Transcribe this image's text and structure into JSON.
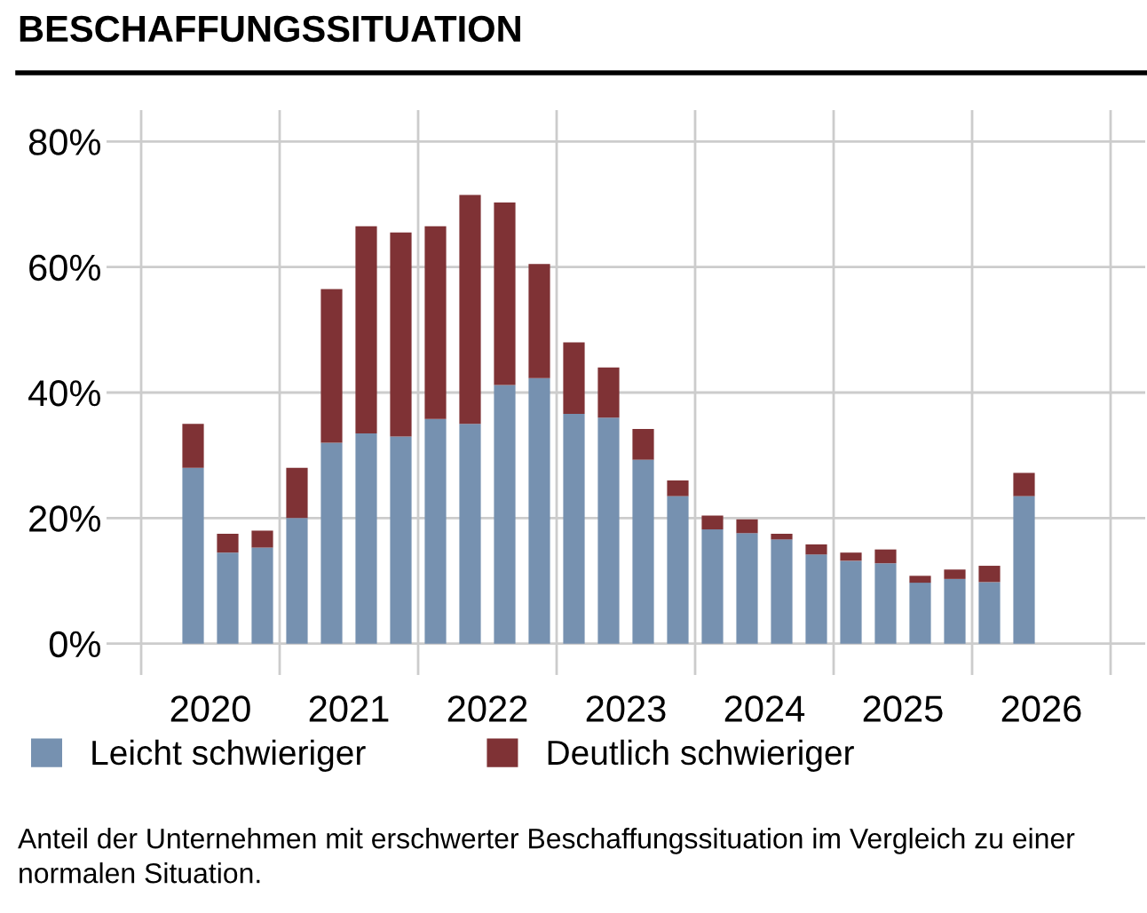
{
  "chart_data": {
    "type": "bar",
    "stacked": true,
    "title": "BESCHAFFUNGSSITUATION",
    "x": [
      2020.375,
      2020.625,
      2020.875,
      2021.125,
      2021.375,
      2021.625,
      2021.875,
      2022.125,
      2022.375,
      2022.625,
      2022.875,
      2023.125,
      2023.375,
      2023.625,
      2023.875,
      2024.125,
      2024.375,
      2024.625,
      2024.875,
      2025.125,
      2025.375,
      2025.625,
      2025.875,
      2026.125,
      2026.375
    ],
    "series": [
      {
        "name": "Leicht schwieriger",
        "color": "#7691b0",
        "values": [
          28,
          14.5,
          15.3,
          20,
          32,
          33.5,
          33,
          35.8,
          35,
          41.2,
          42.3,
          36.6,
          36,
          29.3,
          23.5,
          18.2,
          17.6,
          16.6,
          14.2,
          13.2,
          12.8,
          9.7,
          10.3,
          9.8,
          23.5
        ]
      },
      {
        "name": "Deutlich schwieriger",
        "color": "#7f3235",
        "values": [
          7,
          3,
          2.7,
          8,
          24.5,
          33,
          32.5,
          30.7,
          36.5,
          29.1,
          18.2,
          11.4,
          8,
          4.9,
          2.5,
          2.2,
          2.2,
          0.9,
          1.6,
          1.3,
          2.2,
          1.1,
          1.5,
          2.6,
          3.7
        ]
      }
    ],
    "xlim": [
      2019.75,
      2027.25
    ],
    "xticks": [
      {
        "value": 2020,
        "label": null
      },
      {
        "value": 2020.5,
        "label": "2020"
      },
      {
        "value": 2021,
        "label": null
      },
      {
        "value": 2021.5,
        "label": "2021"
      },
      {
        "value": 2022,
        "label": null
      },
      {
        "value": 2022.5,
        "label": "2022"
      },
      {
        "value": 2023,
        "label": null
      },
      {
        "value": 2023.5,
        "label": "2023"
      },
      {
        "value": 2024,
        "label": null
      },
      {
        "value": 2024.5,
        "label": "2024"
      },
      {
        "value": 2025,
        "label": null
      },
      {
        "value": 2025.5,
        "label": "2025"
      },
      {
        "value": 2026,
        "label": null
      },
      {
        "value": 2026.5,
        "label": "2026"
      },
      {
        "value": 2027,
        "label": null
      }
    ],
    "ylim": [
      -5,
      85
    ],
    "yticks": [
      {
        "value": 0,
        "label": "0%"
      },
      {
        "value": 20,
        "label": "20%"
      },
      {
        "value": 40,
        "label": "40%"
      },
      {
        "value": 60,
        "label": "60%"
      },
      {
        "value": 80,
        "label": "80%"
      }
    ],
    "grid": true,
    "legend": "bottom",
    "annotations": [
      "Anteil der Unternehmen mit erschwerter Beschaffungssituation im Vergleich zu einer normalen Situation."
    ]
  }
}
